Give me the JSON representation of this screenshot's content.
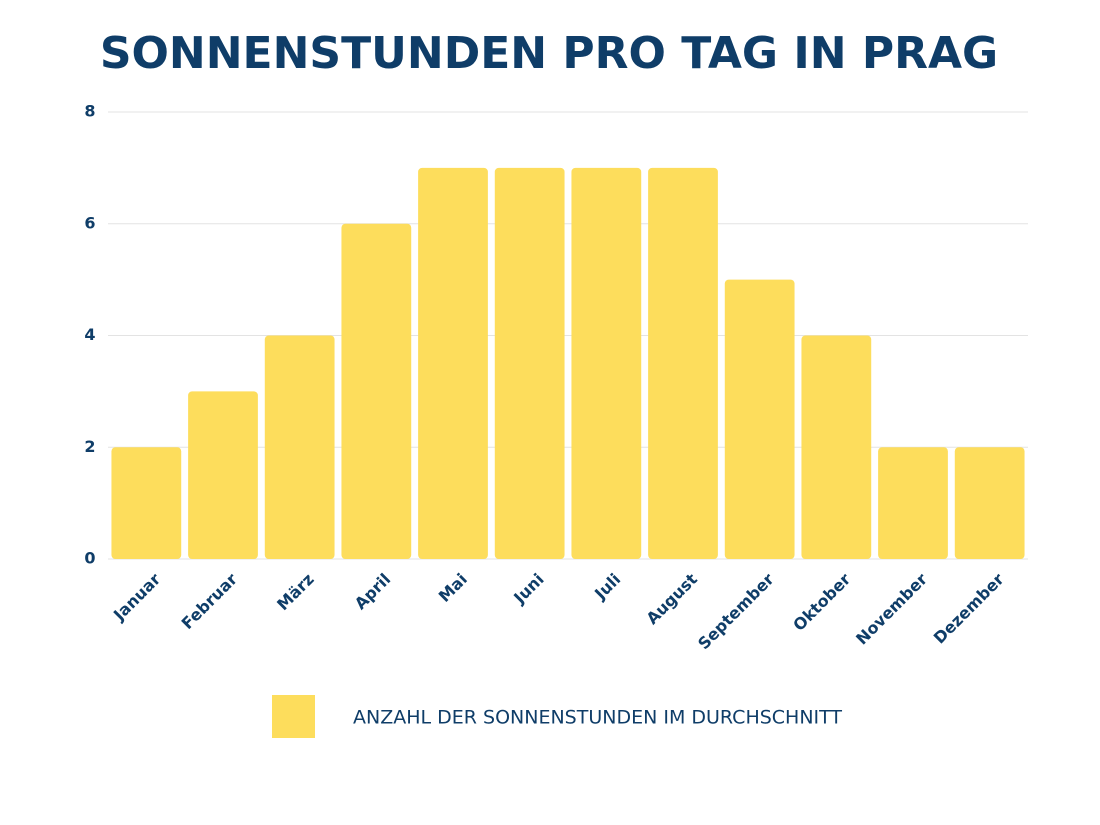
{
  "chart_data": {
    "type": "bar",
    "title": "SONNENSTUNDEN PRO TAG IN PRAG",
    "categories": [
      "Januar",
      "Februar",
      "März",
      "April",
      "Mai",
      "Juni",
      "Juli",
      "August",
      "September",
      "Oktober",
      "November",
      "Dezember"
    ],
    "series": [
      {
        "name": "ANZAHL DER SONNENSTUNDEN IM DURCHSCHNITT",
        "color": "#fddd5c",
        "values": [
          2,
          3,
          4,
          6,
          7,
          7,
          7,
          7,
          5,
          4,
          2,
          2
        ]
      }
    ],
    "ylim": [
      0,
      8
    ],
    "yticks": [
      0,
      2,
      4,
      6,
      8
    ],
    "grid": true
  }
}
